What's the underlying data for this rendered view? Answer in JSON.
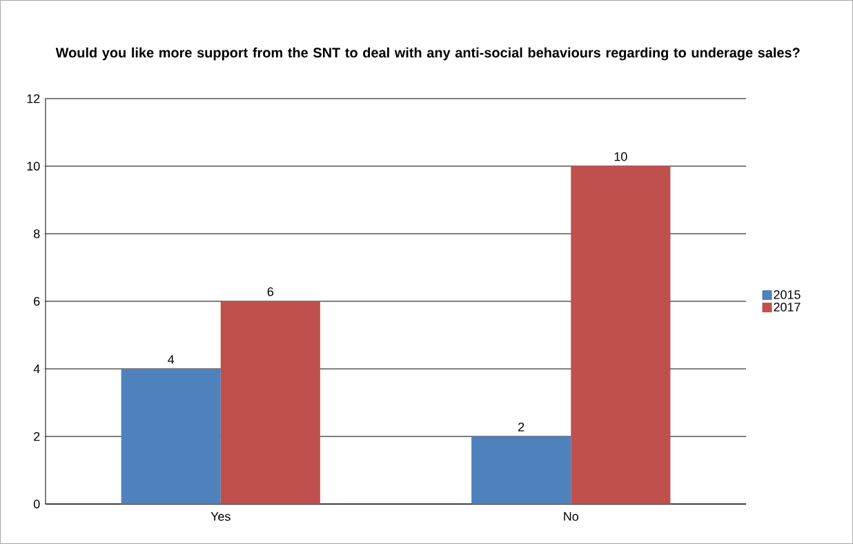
{
  "chart_data": {
    "type": "bar",
    "title": "Would you like more support from the SNT to deal with any anti-social behaviours regarding to underage sales?",
    "categories": [
      "Yes",
      "No"
    ],
    "series": [
      {
        "name": "2015",
        "color": "#4f81bd",
        "values": [
          4,
          2
        ]
      },
      {
        "name": "2017",
        "color": "#c0504d",
        "values": [
          6,
          10
        ]
      }
    ],
    "ylim": [
      0,
      12
    ],
    "yticks": [
      0,
      2,
      4,
      6,
      8,
      10,
      12
    ],
    "grid": "y",
    "legend": "right",
    "data_labels": true
  }
}
